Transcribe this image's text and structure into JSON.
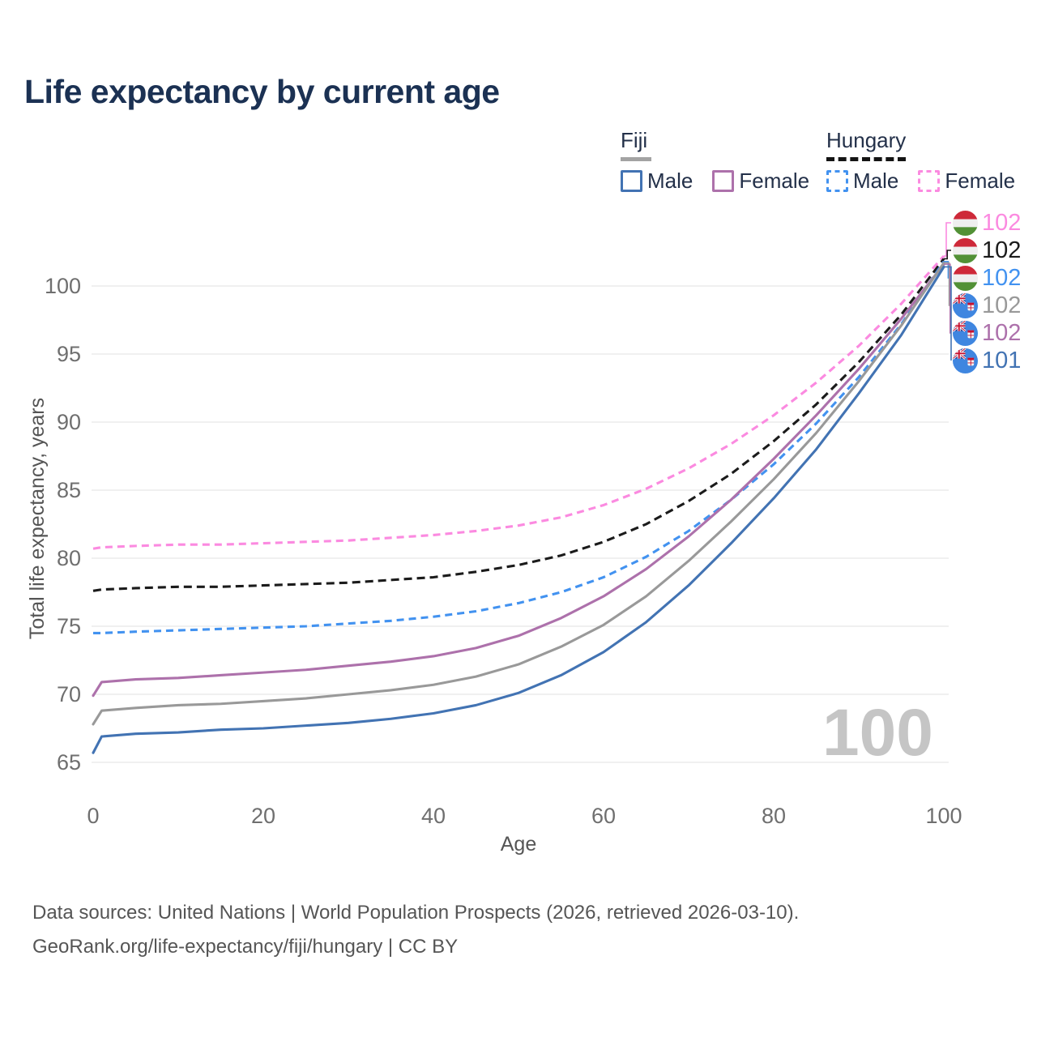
{
  "title": "Life expectancy by current age",
  "legend": {
    "groups": [
      {
        "name": "Fiji",
        "line_style": "solid",
        "underline_color": "#a3a3a3",
        "items": [
          {
            "label": "Male",
            "color": "#4273b3"
          },
          {
            "label": "Female",
            "color": "#ad71ab"
          }
        ]
      },
      {
        "name": "Hungary",
        "line_style": "dashed",
        "underline_color": "#141414",
        "items": [
          {
            "label": "Male",
            "color": "#4292f0"
          },
          {
            "label": "Female",
            "color": "#fb8ae0"
          }
        ]
      }
    ]
  },
  "chart_data": {
    "type": "line",
    "title": "Life expectancy by current age",
    "xlabel": "Age",
    "ylabel": "Total life expectancy, years",
    "xlim": [
      0,
      100
    ],
    "ylim": [
      63.5,
      104
    ],
    "xticks": [
      0,
      20,
      40,
      60,
      80,
      100
    ],
    "yticks": [
      65,
      70,
      75,
      80,
      85,
      90,
      95,
      100
    ],
    "grid": "horizontal",
    "legend_position": "top-right",
    "watermark": "100",
    "x": [
      0,
      1,
      5,
      10,
      15,
      20,
      25,
      30,
      35,
      40,
      45,
      50,
      55,
      60,
      65,
      70,
      75,
      80,
      85,
      90,
      95,
      100
    ],
    "series": [
      {
        "name": "hungary_female",
        "country": "Hungary",
        "sex": "Female",
        "color": "#fb8ae0",
        "dashed": true,
        "values": [
          80.7,
          80.8,
          80.9,
          81.0,
          81.0,
          81.1,
          81.2,
          81.3,
          81.5,
          81.7,
          82.0,
          82.4,
          83.0,
          83.9,
          85.1,
          86.6,
          88.4,
          90.5,
          92.9,
          95.6,
          98.7,
          102.2
        ]
      },
      {
        "name": "hungary_both",
        "country": "Hungary",
        "sex": "Both",
        "color": "#1b1b1b",
        "dashed": true,
        "values": [
          77.6,
          77.7,
          77.8,
          77.9,
          77.9,
          78.0,
          78.1,
          78.2,
          78.4,
          78.6,
          79.0,
          79.5,
          80.2,
          81.2,
          82.5,
          84.2,
          86.2,
          88.6,
          91.3,
          94.4,
          97.9,
          102.0
        ]
      },
      {
        "name": "hungary_male",
        "country": "Hungary",
        "sex": "Male",
        "color": "#4292f0",
        "dashed": true,
        "values": [
          74.5,
          74.5,
          74.6,
          74.7,
          74.8,
          74.9,
          75.0,
          75.2,
          75.4,
          75.7,
          76.1,
          76.7,
          77.5,
          78.6,
          80.1,
          82.0,
          84.3,
          86.9,
          89.9,
          93.3,
          97.2,
          101.8
        ]
      },
      {
        "name": "fiji_female",
        "country": "Fiji",
        "sex": "Female",
        "color": "#ad71ab",
        "dashed": false,
        "values": [
          69.9,
          70.9,
          71.1,
          71.2,
          71.4,
          71.6,
          71.8,
          72.1,
          72.4,
          72.8,
          73.4,
          74.3,
          75.6,
          77.2,
          79.2,
          81.6,
          84.3,
          87.3,
          90.5,
          93.9,
          97.6,
          101.6
        ]
      },
      {
        "name": "fiji_both",
        "country": "Fiji",
        "sex": "Both",
        "color": "#999999",
        "dashed": false,
        "values": [
          67.8,
          68.8,
          69.0,
          69.2,
          69.3,
          69.5,
          69.7,
          70.0,
          70.3,
          70.7,
          71.3,
          72.2,
          73.5,
          75.1,
          77.2,
          79.8,
          82.7,
          85.8,
          89.2,
          93.0,
          97.1,
          101.7
        ]
      },
      {
        "name": "fiji_male",
        "country": "Fiji",
        "sex": "Male",
        "color": "#4273b3",
        "dashed": false,
        "values": [
          65.7,
          66.9,
          67.1,
          67.2,
          67.4,
          67.5,
          67.7,
          67.9,
          68.2,
          68.6,
          69.2,
          70.1,
          71.4,
          73.1,
          75.3,
          78.0,
          81.1,
          84.4,
          88.0,
          92.1,
          96.4,
          101.4
        ]
      }
    ],
    "end_labels": [
      {
        "series": "hungary_female",
        "flag": "hungary",
        "value": "102"
      },
      {
        "series": "hungary_both",
        "flag": "hungary",
        "value": "102"
      },
      {
        "series": "hungary_male",
        "flag": "hungary",
        "value": "102"
      },
      {
        "series": "fiji_both",
        "flag": "fiji",
        "value": "102"
      },
      {
        "series": "fiji_female",
        "flag": "fiji",
        "value": "102"
      },
      {
        "series": "fiji_male",
        "flag": "fiji",
        "value": "101"
      }
    ]
  },
  "footer": {
    "line1": "Data sources: United Nations | World Population Prospects (2026, retrieved 2026-03-10).",
    "line2": "GeoRank.org/life-expectancy/fiji/hungary | CC BY"
  }
}
